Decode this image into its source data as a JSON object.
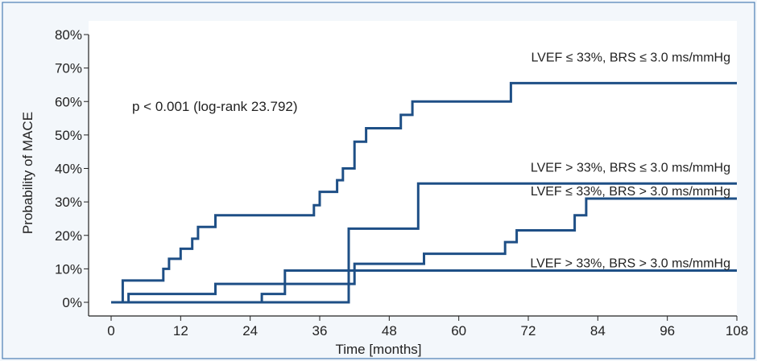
{
  "chart_data": {
    "type": "line",
    "xlabel": "Time [months]",
    "ylabel": "Probability of MACE",
    "xlim": [
      0,
      108
    ],
    "ylim": [
      0,
      80
    ],
    "xticks": [
      0,
      12,
      24,
      36,
      48,
      60,
      72,
      84,
      96,
      108
    ],
    "yticks": [
      0,
      10,
      20,
      30,
      40,
      50,
      60,
      70,
      80
    ],
    "ytick_labels": [
      "0%",
      "10%",
      "20%",
      "30%",
      "40%",
      "50%",
      "60%",
      "70%",
      "80%"
    ],
    "annotation": "p < 0.001 (log-rank 23.792)",
    "colors": {
      "line": "#1e4f86",
      "frame": "#4a7fb5",
      "background": "#f3f7fb"
    },
    "step": true,
    "grid": false,
    "series": [
      {
        "name": "LVEF ≤ 33%, BRS ≤ 3.0 ms/mmHg",
        "x": [
          0,
          2,
          8,
          9,
          10,
          12,
          14,
          15,
          18,
          35,
          36,
          39,
          40,
          42,
          44,
          48,
          50,
          52,
          54,
          56,
          69,
          108
        ],
        "y": [
          0,
          6.5,
          6.5,
          10,
          13,
          16,
          19,
          22.5,
          26,
          29,
          33,
          36.5,
          40,
          48,
          52,
          52,
          56,
          60,
          60,
          60,
          65.5,
          65.5
        ]
      },
      {
        "name": "LVEF > 33%, BRS ≤ 3.0 ms/mmHg",
        "x": [
          0,
          37,
          41,
          53,
          108
        ],
        "y": [
          0,
          0,
          22,
          35.5,
          35.5
        ]
      },
      {
        "name": "LVEF ≤ 33%, BRS > 3.0 ms/mmHg",
        "x": [
          0,
          26,
          30,
          42,
          54,
          68,
          70,
          80,
          82,
          108
        ],
        "y": [
          0,
          2.5,
          5.5,
          11.5,
          14.5,
          18,
          21.5,
          26,
          31,
          31
        ]
      },
      {
        "name": "LVEF > 33%, BRS > 3.0 ms/mmHg",
        "x": [
          0,
          3,
          18,
          30,
          37,
          108
        ],
        "y": [
          0,
          2.5,
          5.5,
          9.5,
          9.5,
          9.5
        ]
      }
    ],
    "series_label_y": [
      72,
      39,
      32,
      10.5
    ]
  }
}
